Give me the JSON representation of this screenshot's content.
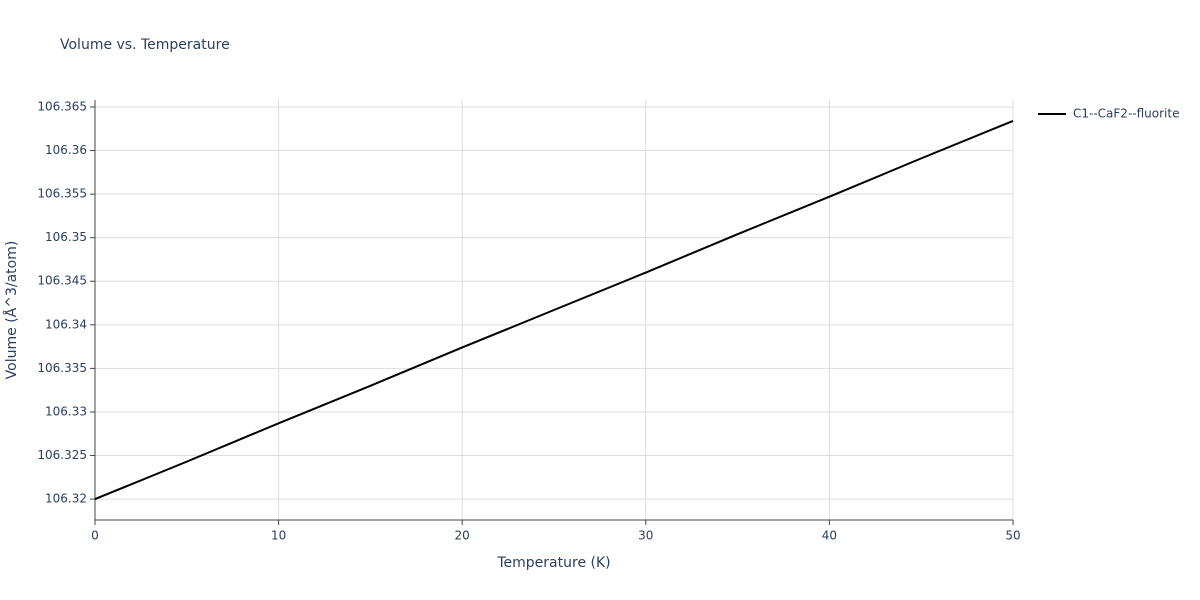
{
  "chart_data": {
    "type": "line",
    "title": "Volume vs. Temperature",
    "x_label": "Temperature (K)",
    "y_label": "Volume (Å^3/atom)",
    "x": [
      0,
      5,
      10,
      15,
      20,
      25,
      30,
      35,
      40,
      45,
      50
    ],
    "series": [
      {
        "name": "C1--CaF2--fluorite",
        "color": "#000000",
        "values": [
          106.32,
          106.3243,
          106.3287,
          106.333,
          106.3374,
          106.3417,
          106.346,
          106.3504,
          106.3547,
          106.3591,
          106.3634
        ]
      }
    ],
    "xlim": [
      0,
      50
    ],
    "xticks": [
      0,
      10,
      20,
      30,
      40,
      50
    ],
    "ylim": [
      106.3176,
      106.3658
    ],
    "yticks": [
      106.32,
      106.325,
      106.33,
      106.335,
      106.34,
      106.345,
      106.35,
      106.355,
      106.36,
      106.365
    ],
    "grid": true,
    "legend": "top-right"
  }
}
